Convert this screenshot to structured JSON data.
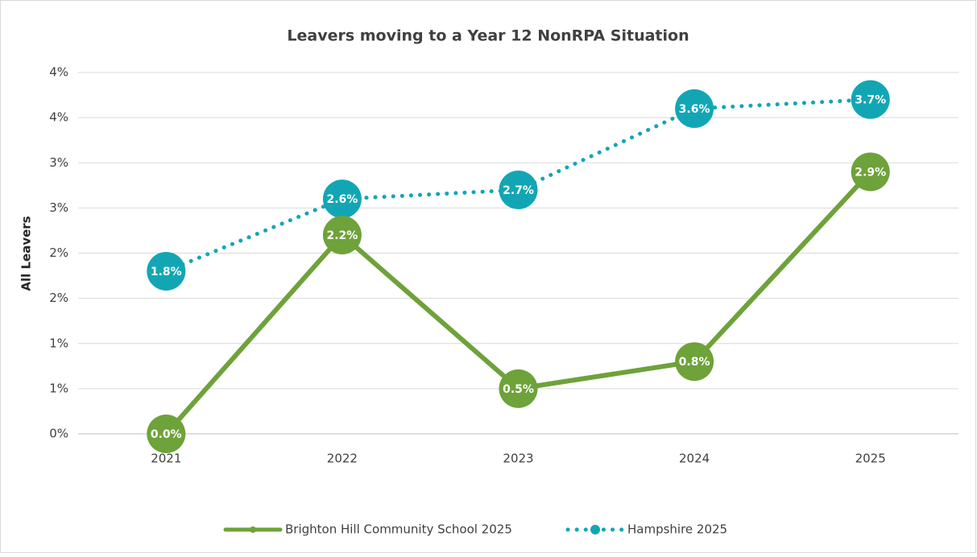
{
  "chart_data": {
    "type": "line",
    "title": "Leavers moving to a Year 12 NonRPA Situation",
    "y_label": "All Leavers",
    "categories": [
      "2021",
      "2022",
      "2023",
      "2024",
      "2025"
    ],
    "series": [
      {
        "name": "Brighton Hill Community School 2025",
        "color": "#6ea23a",
        "dashed": false,
        "values": [
          0.0,
          2.2,
          0.5,
          0.8,
          2.9
        ],
        "value_labels": [
          "0.0%",
          "2.2%",
          "0.5%",
          "0.8%",
          "2.9%"
        ]
      },
      {
        "name": "Hampshire 2025",
        "color": "#12a6b5",
        "dashed": true,
        "values": [
          1.8,
          2.6,
          2.7,
          3.6,
          3.7
        ],
        "value_labels": [
          "1.8%",
          "2.6%",
          "2.7%",
          "3.6%",
          "3.7%"
        ]
      }
    ],
    "ylim": [
      0,
      4
    ],
    "yticks": [
      {
        "value": 0,
        "label": "0%"
      },
      {
        "value": 0.5,
        "label": "1%"
      },
      {
        "value": 1,
        "label": "1%"
      },
      {
        "value": 1.5,
        "label": "2%"
      },
      {
        "value": 2,
        "label": "2%"
      },
      {
        "value": 2.5,
        "label": "3%"
      },
      {
        "value": 3,
        "label": "3%"
      },
      {
        "value": 3.5,
        "label": "4%"
      },
      {
        "value": 4,
        "label": "4%"
      }
    ],
    "grid": true,
    "legend": "bottom"
  }
}
